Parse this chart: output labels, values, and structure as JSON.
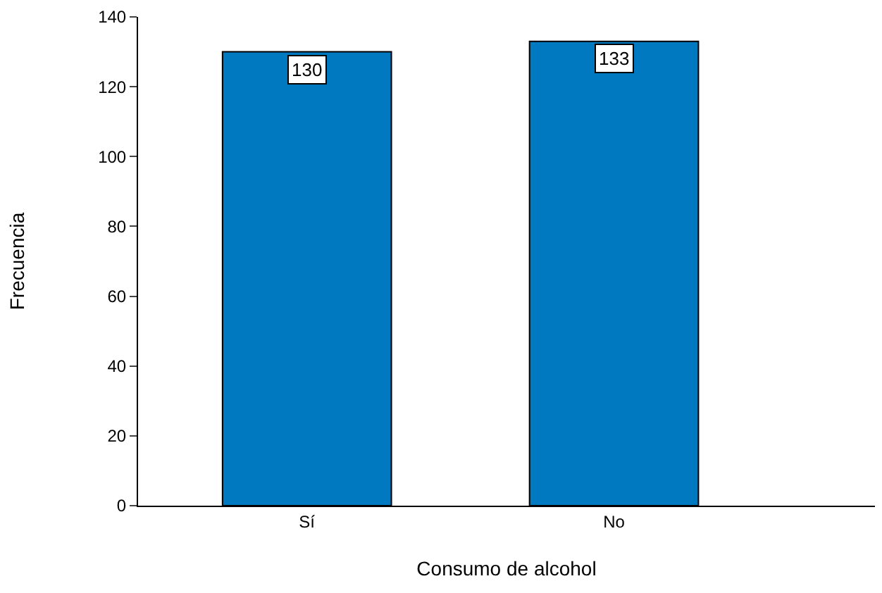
{
  "chart_data": {
    "type": "bar",
    "xlabel": "Consumo de alcohol",
    "ylabel": "Frecuencia",
    "categories": [
      "Sí",
      "No"
    ],
    "values": [
      130,
      133
    ],
    "color": "#0079c1",
    "ylim": [
      0,
      140
    ],
    "yticks": [
      0,
      20,
      40,
      60,
      80,
      100,
      120,
      140
    ],
    "grid": false,
    "data_labels": true
  }
}
